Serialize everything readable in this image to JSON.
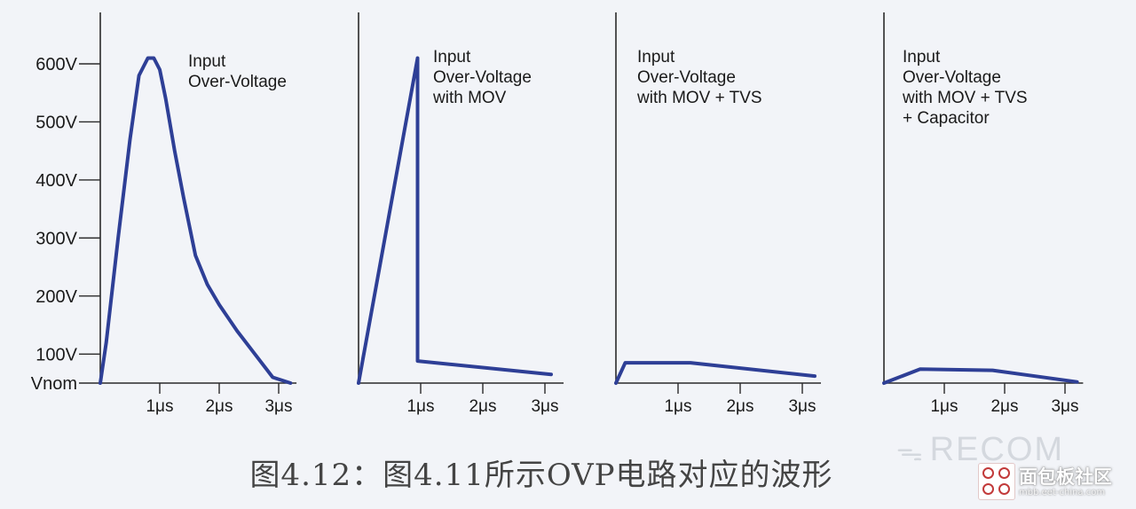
{
  "chart_data": {
    "type": "line",
    "y_tick_labels": [
      "600V",
      "500V",
      "400V",
      "300V",
      "200V",
      "100V",
      "Vnom"
    ],
    "y_tick_values": [
      600,
      500,
      400,
      300,
      200,
      100,
      50
    ],
    "x_tick_labels": [
      "1μs",
      "2μs",
      "3μs"
    ],
    "x_tick_values": [
      1,
      2,
      3
    ],
    "xlim": [
      0,
      3.3
    ],
    "panels": [
      {
        "annotation": [
          "Input",
          "Over-Voltage"
        ],
        "series": [
          {
            "x": [
              0,
              0.1,
              0.3,
              0.5,
              0.65,
              0.8,
              0.9,
              1.0,
              1.1,
              1.25,
              1.4,
              1.6,
              1.8,
              2.0,
              2.3,
              2.6,
              2.9,
              3.2
            ],
            "y": [
              50,
              120,
              300,
              470,
              580,
              610,
              610,
              590,
              540,
              450,
              370,
              270,
              220,
              185,
              140,
              100,
              60,
              50
            ]
          }
        ]
      },
      {
        "annotation": [
          "Input",
          "Over-Voltage",
          "with MOV"
        ],
        "series": [
          {
            "x": [
              0,
              0.95,
              0.95,
              3.1
            ],
            "y": [
              50,
              610,
              88,
              65
            ]
          }
        ]
      },
      {
        "annotation": [
          "Input",
          "Over-Voltage",
          "with MOV + TVS"
        ],
        "series": [
          {
            "x": [
              0,
              0.15,
              1.2,
              3.2
            ],
            "y": [
              50,
              85,
              85,
              62
            ]
          }
        ]
      },
      {
        "annotation": [
          "Input",
          "Over-Voltage",
          "with MOV + TVS",
          "+ Capacitor"
        ],
        "series": [
          {
            "x": [
              0,
              0.6,
              1.8,
              3.2
            ],
            "y": [
              50,
              74,
              72,
              52
            ]
          }
        ]
      }
    ]
  },
  "caption": "图4.12：图4.11所示OVP电路对应的波形",
  "watermark": {
    "brand": "RECOM",
    "site_name": "面包板社区",
    "site_url": "mbb.eet-china.com"
  }
}
